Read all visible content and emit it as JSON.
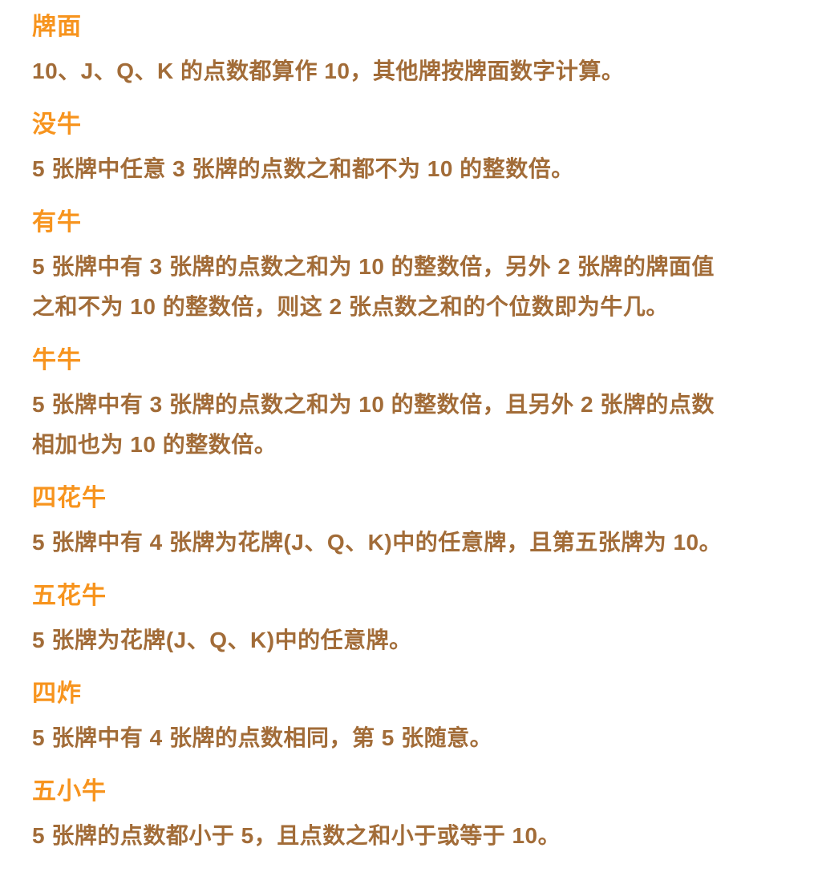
{
  "page": {
    "background": "#ffffff",
    "description_labels": {
      "language": "zh-CN"
    }
  },
  "colors": {
    "heading": "#f7941e",
    "body_text": "#a26c38"
  },
  "sections": [
    {
      "id": "card-face",
      "title": "牌面",
      "text": "10、J、Q、K 的点数都算作 10，其他牌按牌面数字计算。"
    },
    {
      "id": "no-niu",
      "title": "没牛",
      "text": "5 张牌中任意 3 张牌的点数之和都不为 10 的整数倍。"
    },
    {
      "id": "has-niu",
      "title": "有牛",
      "text": "5 张牌中有 3 张牌的点数之和为 10 的整数倍，另外 2 张牌的牌面值\n之和不为 10 的整数倍，则这 2 张点数之和的个位数即为牛几。"
    },
    {
      "id": "niu-niu",
      "title": "牛牛",
      "text": "5 张牌中有 3 张牌的点数之和为 10 的整数倍，且另外 2 张牌的点数\n相加也为 10 的整数倍。"
    },
    {
      "id": "four-flower-niu",
      "title": "四花牛",
      "text": "5 张牌中有 4 张牌为花牌(J、Q、K)中的任意牌，且第五张牌为 10。"
    },
    {
      "id": "five-flower-niu",
      "title": "五花牛",
      "text": "5 张牌为花牌(J、Q、K)中的任意牌。"
    },
    {
      "id": "four-bomb",
      "title": "四炸",
      "text": "5 张牌中有 4 张牌的点数相同，第 5 张随意。"
    },
    {
      "id": "five-small-niu",
      "title": "五小牛",
      "text": "5 张牌的点数都小于 5，且点数之和小于或等于 10。"
    }
  ]
}
